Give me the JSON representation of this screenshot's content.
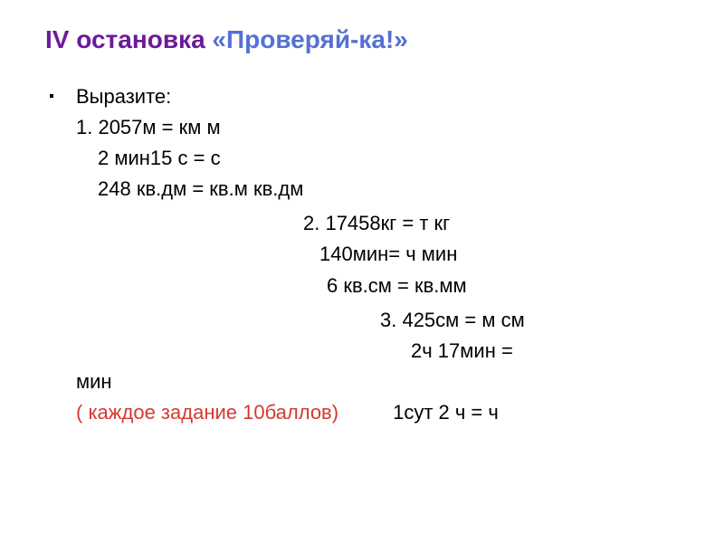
{
  "title": {
    "part1": "IV остановка ",
    "part2": "«Проверяй-ка!»"
  },
  "sections": {
    "intro": "Выразите:",
    "block1": {
      "line1": "1. 2057м =     км    м",
      "line2": "2 мин15 с =     с",
      "line3": "248 кв.дм =     кв.м    кв.дм"
    },
    "block2": {
      "line1": "2. 17458кг =     т    кг",
      "line2": "140мин=    ч    мин",
      "line3": "6 кв.см =     кв.мм"
    },
    "block3": {
      "line1": "3. 425см =     м    см",
      "line2": "2ч 17мин =     "
    },
    "min_line": "мин",
    "last": {
      "label": "( каждое  задание 10баллов)",
      "value": "1сут 2 ч =     ч"
    }
  },
  "colors": {
    "title_purple": "#6a1b9a",
    "title_blue": "#5570d6",
    "body_text": "#000000",
    "red_text": "#d43a2f",
    "background": "#ffffff"
  },
  "typography": {
    "title_fontsize": 28,
    "body_fontsize": 22,
    "font_family": "Arial"
  }
}
